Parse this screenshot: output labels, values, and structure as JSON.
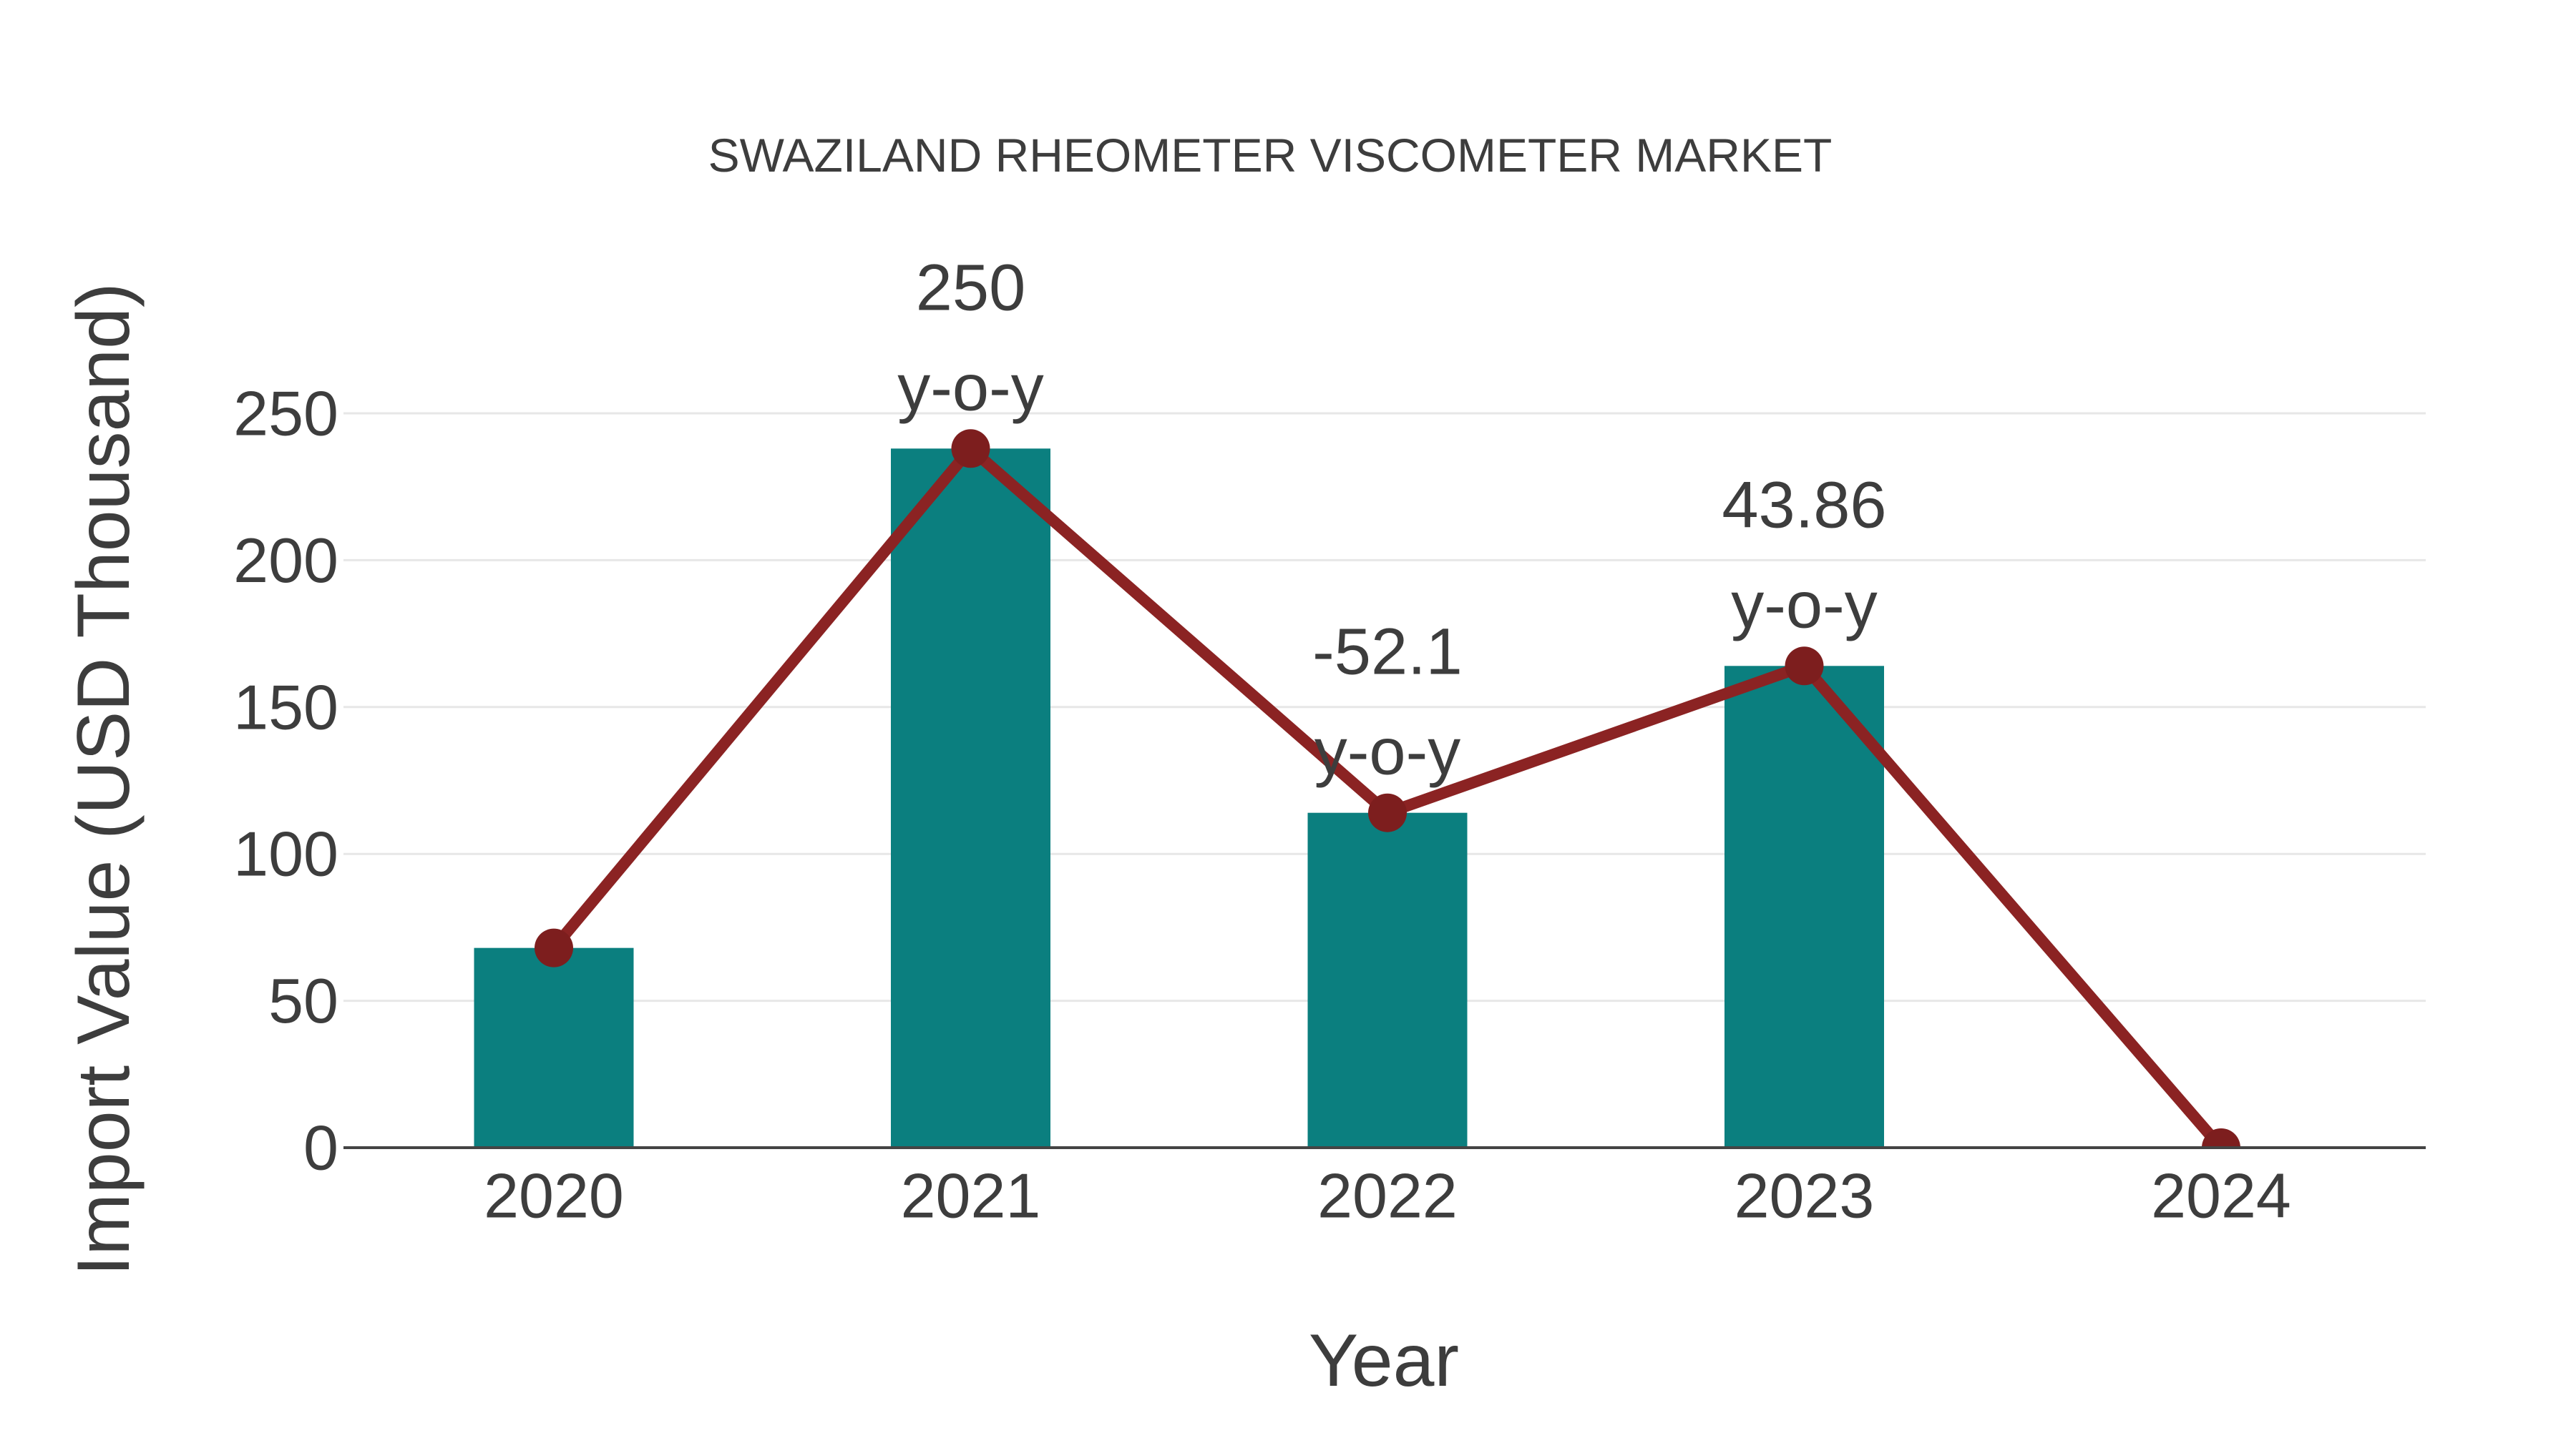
{
  "chart_data": {
    "type": "bar",
    "title": "SWAZILAND RHEOMETER VISCOMETER MARKET",
    "xlabel": "Year",
    "ylabel": "Import Value (USD Thousand)",
    "categories": [
      "2020",
      "2021",
      "2022",
      "2023",
      "2024"
    ],
    "series": [
      {
        "name": "Import Value (bars)",
        "type": "bar",
        "values": [
          68,
          238,
          114,
          164,
          0
        ]
      },
      {
        "name": "Import Value trend (line)",
        "type": "line",
        "values": [
          68,
          238,
          114,
          164,
          0
        ]
      }
    ],
    "annotations": [
      {
        "category": "2021",
        "line1": "250",
        "line2": "y-o-y"
      },
      {
        "category": "2022",
        "line1": "-52.1",
        "line2": "y-o-y"
      },
      {
        "category": "2023",
        "line1": "43.86",
        "line2": "y-o-y"
      }
    ],
    "yticks": [
      0,
      50,
      100,
      150,
      200,
      250
    ],
    "ylim": [
      0,
      250
    ],
    "grid": true,
    "legend_position": "none",
    "colors": {
      "bar": "#0b7f7f",
      "line": "#8b2323",
      "marker": "#7d1e1e",
      "text": "#3d3d3d",
      "grid": "#e7e7e7",
      "axis": "#444444"
    }
  }
}
